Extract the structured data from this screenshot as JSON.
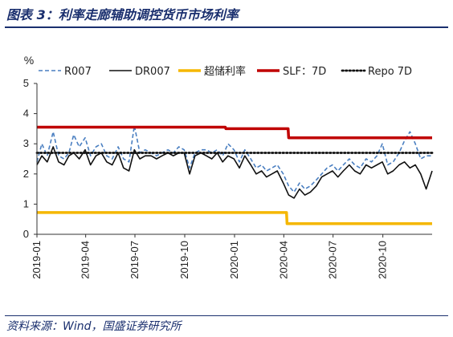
{
  "header": {
    "title": "图表 3：利率走廊辅助调控货币市场利率"
  },
  "footer": {
    "source": "资料来源：Wind，国盛证券研究所"
  },
  "chart_data": {
    "type": "line",
    "title": "图表 3：利率走廊辅助调控货币市场利率",
    "ylabel": "%",
    "ylim": [
      0,
      5
    ],
    "yticks": [
      0,
      1,
      2,
      3,
      4,
      5
    ],
    "xlim": [
      "2019-01-01",
      "2020-12-31"
    ],
    "xticks": [
      "2019-01",
      "2019-04",
      "2019-07",
      "2019-10",
      "2020-01",
      "2020-04",
      "2020-07",
      "2020-10"
    ],
    "legend_position": "top",
    "grid": false,
    "series": [
      {
        "name": "R007",
        "color": "#4a7fc1",
        "style": "dashed",
        "points": [
          [
            "2019-01-01",
            2.4
          ],
          [
            "2019-01-10",
            3.0
          ],
          [
            "2019-01-20",
            2.6
          ],
          [
            "2019-01-31",
            3.4
          ],
          [
            "2019-02-10",
            2.6
          ],
          [
            "2019-02-20",
            2.5
          ],
          [
            "2019-03-01",
            2.7
          ],
          [
            "2019-03-10",
            3.3
          ],
          [
            "2019-03-20",
            2.9
          ],
          [
            "2019-03-31",
            3.2
          ],
          [
            "2019-04-10",
            2.6
          ],
          [
            "2019-04-20",
            2.9
          ],
          [
            "2019-04-30",
            3.0
          ],
          [
            "2019-05-10",
            2.6
          ],
          [
            "2019-05-20",
            2.5
          ],
          [
            "2019-05-31",
            2.9
          ],
          [
            "2019-06-10",
            2.5
          ],
          [
            "2019-06-20",
            2.4
          ],
          [
            "2019-06-30",
            3.6
          ],
          [
            "2019-07-10",
            2.7
          ],
          [
            "2019-07-20",
            2.8
          ],
          [
            "2019-07-31",
            2.7
          ],
          [
            "2019-08-10",
            2.6
          ],
          [
            "2019-08-20",
            2.7
          ],
          [
            "2019-08-31",
            2.8
          ],
          [
            "2019-09-10",
            2.7
          ],
          [
            "2019-09-20",
            2.9
          ],
          [
            "2019-09-30",
            2.8
          ],
          [
            "2019-10-10",
            2.2
          ],
          [
            "2019-10-20",
            2.7
          ],
          [
            "2019-10-31",
            2.8
          ],
          [
            "2019-11-10",
            2.8
          ],
          [
            "2019-11-20",
            2.7
          ],
          [
            "2019-11-30",
            2.8
          ],
          [
            "2019-12-10",
            2.6
          ],
          [
            "2019-12-20",
            3.0
          ],
          [
            "2019-12-31",
            2.8
          ],
          [
            "2020-01-10",
            2.4
          ],
          [
            "2020-01-20",
            2.8
          ],
          [
            "2020-01-31",
            2.5
          ],
          [
            "2020-02-10",
            2.2
          ],
          [
            "2020-02-20",
            2.3
          ],
          [
            "2020-02-29",
            2.1
          ],
          [
            "2020-03-10",
            2.2
          ],
          [
            "2020-03-20",
            2.3
          ],
          [
            "2020-03-31",
            2.0
          ],
          [
            "2020-04-10",
            1.6
          ],
          [
            "2020-04-20",
            1.4
          ],
          [
            "2020-04-30",
            1.7
          ],
          [
            "2020-05-10",
            1.5
          ],
          [
            "2020-05-20",
            1.6
          ],
          [
            "2020-05-31",
            1.8
          ],
          [
            "2020-06-10",
            2.0
          ],
          [
            "2020-06-20",
            2.2
          ],
          [
            "2020-06-30",
            2.3
          ],
          [
            "2020-07-10",
            2.1
          ],
          [
            "2020-07-20",
            2.3
          ],
          [
            "2020-07-31",
            2.5
          ],
          [
            "2020-08-10",
            2.3
          ],
          [
            "2020-08-20",
            2.2
          ],
          [
            "2020-08-31",
            2.5
          ],
          [
            "2020-09-10",
            2.4
          ],
          [
            "2020-09-20",
            2.6
          ],
          [
            "2020-09-30",
            3.0
          ],
          [
            "2020-10-10",
            2.3
          ],
          [
            "2020-10-20",
            2.4
          ],
          [
            "2020-10-31",
            2.7
          ],
          [
            "2020-11-10",
            3.1
          ],
          [
            "2020-11-20",
            3.4
          ],
          [
            "2020-11-30",
            3.0
          ],
          [
            "2020-12-10",
            2.5
          ],
          [
            "2020-12-20",
            2.6
          ],
          [
            "2020-12-31",
            2.6
          ]
        ]
      },
      {
        "name": "DR007",
        "color": "#111111",
        "style": "solid",
        "points": [
          [
            "2019-01-01",
            2.3
          ],
          [
            "2019-01-10",
            2.6
          ],
          [
            "2019-01-20",
            2.4
          ],
          [
            "2019-01-31",
            2.9
          ],
          [
            "2019-02-10",
            2.4
          ],
          [
            "2019-02-20",
            2.3
          ],
          [
            "2019-03-01",
            2.6
          ],
          [
            "2019-03-10",
            2.7
          ],
          [
            "2019-03-20",
            2.5
          ],
          [
            "2019-03-31",
            2.8
          ],
          [
            "2019-04-10",
            2.3
          ],
          [
            "2019-04-20",
            2.6
          ],
          [
            "2019-04-30",
            2.7
          ],
          [
            "2019-05-10",
            2.4
          ],
          [
            "2019-05-20",
            2.3
          ],
          [
            "2019-05-31",
            2.7
          ],
          [
            "2019-06-10",
            2.2
          ],
          [
            "2019-06-20",
            2.1
          ],
          [
            "2019-06-30",
            2.8
          ],
          [
            "2019-07-10",
            2.5
          ],
          [
            "2019-07-20",
            2.6
          ],
          [
            "2019-07-31",
            2.6
          ],
          [
            "2019-08-10",
            2.5
          ],
          [
            "2019-08-20",
            2.6
          ],
          [
            "2019-08-31",
            2.7
          ],
          [
            "2019-09-10",
            2.6
          ],
          [
            "2019-09-20",
            2.7
          ],
          [
            "2019-09-30",
            2.7
          ],
          [
            "2019-10-10",
            2.0
          ],
          [
            "2019-10-20",
            2.6
          ],
          [
            "2019-10-31",
            2.7
          ],
          [
            "2019-11-10",
            2.6
          ],
          [
            "2019-11-20",
            2.5
          ],
          [
            "2019-11-30",
            2.7
          ],
          [
            "2019-12-10",
            2.4
          ],
          [
            "2019-12-20",
            2.6
          ],
          [
            "2019-12-31",
            2.5
          ],
          [
            "2020-01-10",
            2.2
          ],
          [
            "2020-01-20",
            2.6
          ],
          [
            "2020-01-31",
            2.3
          ],
          [
            "2020-02-10",
            2.0
          ],
          [
            "2020-02-20",
            2.1
          ],
          [
            "2020-02-29",
            1.9
          ],
          [
            "2020-03-10",
            2.0
          ],
          [
            "2020-03-20",
            2.1
          ],
          [
            "2020-03-31",
            1.7
          ],
          [
            "2020-04-10",
            1.3
          ],
          [
            "2020-04-20",
            1.2
          ],
          [
            "2020-04-30",
            1.5
          ],
          [
            "2020-05-10",
            1.3
          ],
          [
            "2020-05-20",
            1.4
          ],
          [
            "2020-05-31",
            1.6
          ],
          [
            "2020-06-10",
            1.9
          ],
          [
            "2020-06-20",
            2.0
          ],
          [
            "2020-06-30",
            2.1
          ],
          [
            "2020-07-10",
            1.9
          ],
          [
            "2020-07-20",
            2.1
          ],
          [
            "2020-07-31",
            2.3
          ],
          [
            "2020-08-10",
            2.1
          ],
          [
            "2020-08-20",
            2.0
          ],
          [
            "2020-08-31",
            2.3
          ],
          [
            "2020-09-10",
            2.2
          ],
          [
            "2020-09-20",
            2.3
          ],
          [
            "2020-09-30",
            2.4
          ],
          [
            "2020-10-10",
            2.0
          ],
          [
            "2020-10-20",
            2.1
          ],
          [
            "2020-10-31",
            2.3
          ],
          [
            "2020-11-10",
            2.4
          ],
          [
            "2020-11-20",
            2.2
          ],
          [
            "2020-11-30",
            2.3
          ],
          [
            "2020-12-10",
            2.0
          ],
          [
            "2020-12-20",
            1.5
          ],
          [
            "2020-12-31",
            2.1
          ]
        ]
      },
      {
        "name": "超储利率",
        "color": "#f5b700",
        "style": "solid",
        "points": [
          [
            "2019-01-01",
            0.72
          ],
          [
            "2020-04-06",
            0.72
          ],
          [
            "2020-04-07",
            0.35
          ],
          [
            "2020-12-31",
            0.35
          ]
        ]
      },
      {
        "name": "SLF：7D",
        "color": "#c00000",
        "style": "solid",
        "points": [
          [
            "2019-01-01",
            3.55
          ],
          [
            "2019-12-15",
            3.55
          ],
          [
            "2019-12-16",
            3.5
          ],
          [
            "2020-04-09",
            3.5
          ],
          [
            "2020-04-10",
            3.2
          ],
          [
            "2020-12-31",
            3.2
          ]
        ]
      },
      {
        "name": "Repo 7D",
        "color": "#111111",
        "style": "dotted",
        "points": [
          [
            "2019-01-01",
            2.7
          ],
          [
            "2020-02-16",
            2.7
          ],
          [
            "2020-02-17",
            2.7
          ],
          [
            "2020-12-31",
            2.7
          ]
        ]
      }
    ]
  }
}
